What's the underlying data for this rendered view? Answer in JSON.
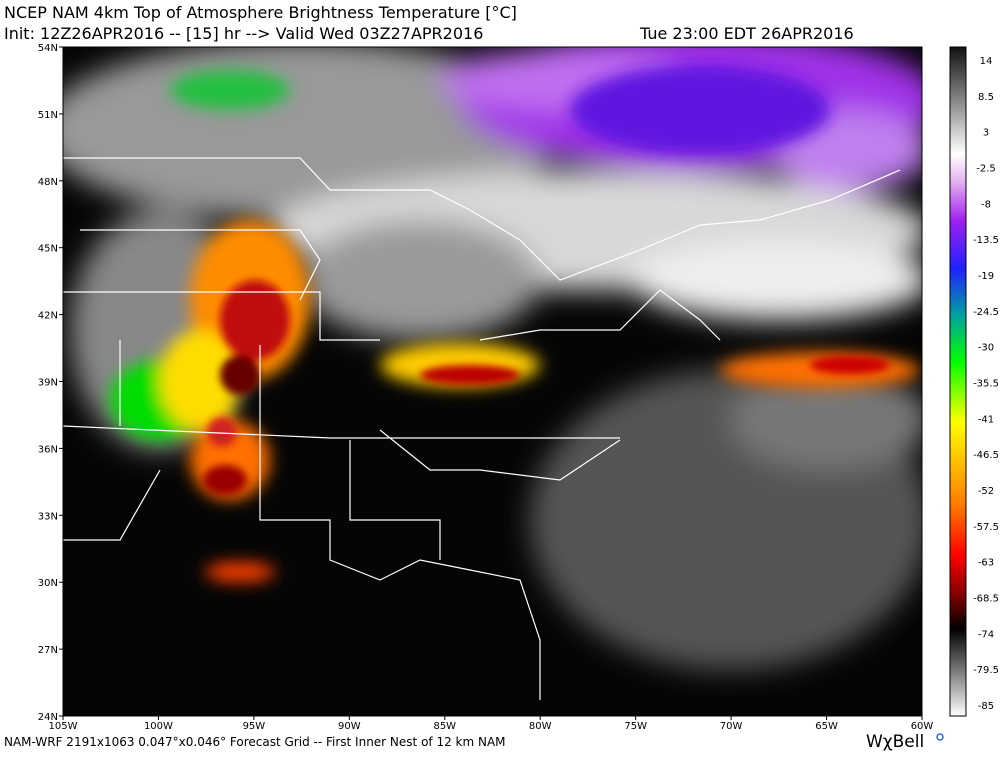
{
  "header": {
    "title": "NCEP NAM 4km Top of Atmosphere Brightness Temperature [°C]",
    "init": "Init: 12Z26APR2016 -- [15] hr --> Valid Wed 03Z27APR2016",
    "valid_local": "Tue 23:00 EDT 26APR2016"
  },
  "map": {
    "lat_labels": [
      "54N",
      "51N",
      "48N",
      "45N",
      "42N",
      "39N",
      "36N",
      "33N",
      "30N",
      "27N",
      "24N"
    ],
    "lon_labels": [
      "105W",
      "100W",
      "95W",
      "90W",
      "85W",
      "80W",
      "75W",
      "70W",
      "65W",
      "60W"
    ]
  },
  "colorbar": {
    "ticks": [
      14,
      8.5,
      3,
      -2.5,
      -8,
      -13.5,
      -19,
      -24.5,
      -30,
      -35.5,
      -41,
      -46.5,
      -52,
      -57.5,
      -63,
      -68.5,
      -74,
      -79.5,
      -85
    ]
  },
  "footer": {
    "text": "NAM-WRF 2191x1063 0.047°x0.046° Forecast Grid -- First Inner Nest of 12 km NAM",
    "logo": "WχBell"
  }
}
